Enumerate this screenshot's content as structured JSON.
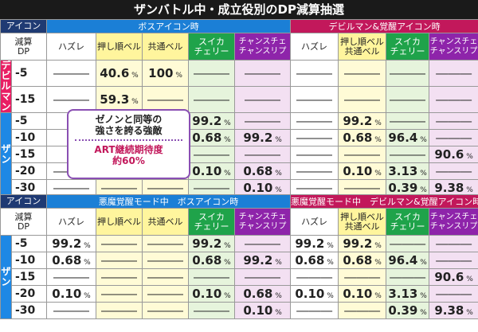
{
  "title": "ザンバトル中・成立役別のDP減算抽選",
  "icon_label": "アイコン",
  "dp_header_line1": "減算",
  "dp_header_line2": "DP",
  "group_labels": {
    "boss_icon": "ボスアイコン時",
    "devilman_icon": "デビルマン&覚醒アイコン時",
    "akuma_boss": "悪魔覚醒モード中　ボスアイコン時",
    "akuma_devil": "悪魔覚醒モード中　デビルマン&覚醒アイコン時"
  },
  "cols_boss": [
    "ハズレ",
    "押し順ベル",
    "共通ベル",
    "スイカ\nチェリー",
    "チャンスチェ\nチャンスリプ"
  ],
  "cols_devil": [
    "ハズレ",
    "押し順ベル\n共通ベル",
    "スイカ\nチェリー",
    "チャンスチェ\nチャンスリプ"
  ],
  "side_labels": {
    "devilman": "デビルマン",
    "zan": "ザン",
    "zan2": "ザン"
  },
  "dash": "―――",
  "unit": "%",
  "callout": {
    "line1": "ゼノンと同等の",
    "line2": "強さを誇る強敵",
    "line3": "ART継続期待度",
    "line4": "約60%"
  },
  "table1_rows": [
    {
      "dp": "-5",
      "side": "devilman",
      "boss": [
        "―",
        "40.6",
        "100",
        "―",
        "―"
      ],
      "devil": [
        "―",
        "―",
        "―",
        "―"
      ]
    },
    {
      "dp": "-15",
      "side": "devilman",
      "boss": [
        "―",
        "59.3",
        "―",
        "―",
        "―"
      ],
      "devil": [
        "―",
        "―",
        "―",
        "―"
      ]
    },
    {
      "dp": "-5",
      "side": "zan",
      "boss": [
        "",
        "",
        "",
        "99.2",
        "―"
      ],
      "devil": [
        "―",
        "99.2",
        "―",
        "―"
      ]
    },
    {
      "dp": "-10",
      "side": "zan",
      "boss": [
        "",
        "",
        "",
        "0.68",
        "99.2"
      ],
      "devil": [
        "―",
        "0.68",
        "96.4",
        "―"
      ]
    },
    {
      "dp": "-15",
      "side": "zan",
      "boss": [
        "",
        "",
        "",
        "―",
        "―"
      ],
      "devil": [
        "―",
        "―",
        "―",
        "90.6"
      ]
    },
    {
      "dp": "-20",
      "side": "zan",
      "boss": [
        "―",
        "―",
        "―",
        "0.10",
        "0.68"
      ],
      "devil": [
        "―",
        "0.10",
        "3.13",
        "―"
      ]
    },
    {
      "dp": "-30",
      "side": "zan",
      "boss": [
        "―",
        "―",
        "―",
        "―",
        "0.10"
      ],
      "devil": [
        "―",
        "―",
        "0.39",
        "9.38"
      ]
    }
  ],
  "table2_rows": [
    {
      "dp": "-5",
      "boss": [
        "99.2",
        "―",
        "―",
        "99.2",
        "―"
      ],
      "devil": [
        "99.2",
        "99.2",
        "―",
        "―"
      ]
    },
    {
      "dp": "-10",
      "boss": [
        "0.68",
        "―",
        "―",
        "0.68",
        "99.2"
      ],
      "devil": [
        "0.68",
        "0.68",
        "96.4",
        "―"
      ]
    },
    {
      "dp": "-15",
      "boss": [
        "―",
        "―",
        "―",
        "―",
        "―"
      ],
      "devil": [
        "―",
        "―",
        "―",
        "90.6"
      ]
    },
    {
      "dp": "-20",
      "boss": [
        "0.10",
        "―",
        "―",
        "0.10",
        "0.68"
      ],
      "devil": [
        "0.10",
        "0.10",
        "3.13",
        "―"
      ]
    },
    {
      "dp": "-30",
      "boss": [
        "―",
        "―",
        "―",
        "―",
        "0.10"
      ],
      "devil": [
        "―",
        "―",
        "0.39",
        "9.38"
      ]
    }
  ],
  "colors": {
    "header_blue": "#1b7fd6",
    "header_pink": "#c2185b",
    "side_pink": "#e91e63",
    "side_blue": "#1e88e5",
    "yellow": "#fff59d",
    "green": "#1fa34a",
    "purple": "#8e24aa"
  }
}
